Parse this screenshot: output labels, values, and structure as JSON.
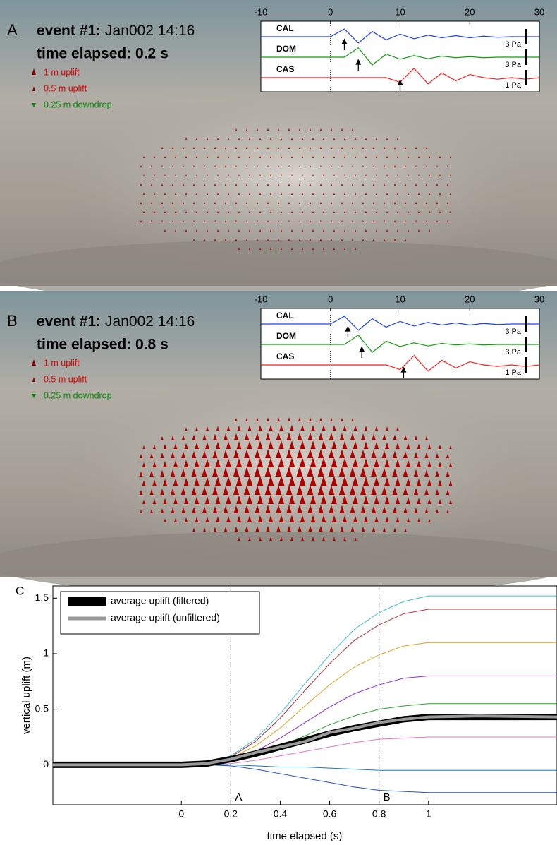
{
  "panels": [
    {
      "label": "A",
      "heading": "event #1:",
      "event": "Jan002 14:16",
      "elapsed": "time elapsed: 0.2 s",
      "legend": [
        "1 m uplift",
        "0.5 m uplift",
        "0.25 m downdrop"
      ]
    },
    {
      "label": "B",
      "heading": "event #1:",
      "event": "Jan002 14:16",
      "elapsed": "time elapsed: 0.8 s",
      "legend": [
        "1 m uplift",
        "0.5 m uplift",
        "0.25 m downdrop"
      ]
    }
  ],
  "chart_data": [
    {
      "type": "waveform",
      "xlim": [
        -10,
        30
      ],
      "xticks": [
        -10,
        0,
        10,
        20,
        30
      ],
      "x": [
        -10,
        -8,
        -6,
        -4,
        -2,
        0,
        2,
        4,
        6,
        8,
        10,
        12,
        14,
        16,
        18,
        20,
        22,
        24,
        26,
        28,
        30
      ],
      "series": [
        {
          "name": "CAL",
          "color": "#1f3fff",
          "scale": {
            "value": 3,
            "label": "3 Pa"
          },
          "arrival": 2,
          "values": [
            0,
            0,
            0,
            0,
            0,
            0,
            1.5,
            -1.2,
            1,
            -0.6,
            0.5,
            -0.4,
            0.3,
            -0.2,
            0.2,
            -0.2,
            0.1,
            -0.1,
            0,
            0,
            0
          ]
        },
        {
          "name": "DOM",
          "color": "#129c12",
          "scale": {
            "value": 3,
            "label": "3 Pa"
          },
          "arrival": 4,
          "values": [
            0,
            0,
            0,
            0,
            0,
            0,
            0,
            1.8,
            -1.5,
            0.6,
            -0.4,
            0.3,
            -0.3,
            0.2,
            -0.1,
            0.1,
            -0.1,
            0,
            0,
            0,
            0
          ]
        },
        {
          "name": "CAS",
          "color": "#ff1a1a",
          "scale": {
            "value": 1,
            "label": "1 Pa"
          },
          "arrival": 10,
          "values": [
            0,
            0,
            0,
            0,
            0,
            0,
            0,
            0,
            0,
            0,
            -0.3,
            0.6,
            -0.4,
            0.3,
            -0.2,
            0.2,
            0,
            -0.1,
            0,
            -0.1,
            0
          ]
        }
      ]
    },
    {
      "type": "waveform",
      "xlim": [
        -10,
        30
      ],
      "xticks": [
        -10,
        0,
        10,
        20,
        30
      ],
      "x": [
        -10,
        -8,
        -6,
        -4,
        -2,
        0,
        2,
        4,
        6,
        8,
        10,
        12,
        14,
        16,
        18,
        20,
        22,
        24,
        26,
        28,
        30
      ],
      "series": [
        {
          "name": "CAL",
          "color": "#1f3fff",
          "scale": {
            "value": 3,
            "label": "3 Pa"
          },
          "arrival": 2.5,
          "values": [
            0,
            0,
            0,
            0,
            0,
            0,
            1.5,
            -1.2,
            1,
            -0.6,
            0.5,
            -0.4,
            0.3,
            -0.2,
            0.2,
            -0.2,
            0.1,
            -0.1,
            0,
            0,
            0
          ]
        },
        {
          "name": "DOM",
          "color": "#129c12",
          "scale": {
            "value": 3,
            "label": "3 Pa"
          },
          "arrival": 4.5,
          "values": [
            0,
            0,
            0,
            0,
            0,
            0,
            0,
            1.8,
            -1.5,
            0.6,
            -0.4,
            0.3,
            -0.3,
            0.2,
            -0.1,
            0.1,
            -0.1,
            0,
            0,
            0,
            0
          ]
        },
        {
          "name": "CAS",
          "color": "#ff1a1a",
          "scale": {
            "value": 1,
            "label": "1 Pa"
          },
          "arrival": 10.5,
          "values": [
            0,
            0,
            0,
            0,
            0,
            0,
            0,
            0,
            0,
            0,
            -0.3,
            0.6,
            -0.4,
            0.3,
            -0.2,
            0.2,
            0,
            -0.1,
            0,
            -0.1,
            0
          ]
        }
      ]
    },
    {
      "type": "line",
      "panel_label": "C",
      "xlabel": "time elapsed (s)",
      "ylabel": "vertical uplift (m)",
      "xlim": [
        -0.52,
        1.52
      ],
      "ylim": [
        -0.36,
        1.61
      ],
      "xticks": [
        0,
        0.2,
        0.4,
        0.6,
        0.8,
        1
      ],
      "yticks": [
        0,
        0.5,
        1,
        1.5
      ],
      "markers": [
        {
          "value": 0.2,
          "label": "A"
        },
        {
          "value": 0.8,
          "label": "B"
        }
      ],
      "x": [
        -0.52,
        0,
        0.1,
        0.2,
        0.3,
        0.4,
        0.5,
        0.6,
        0.7,
        0.8,
        0.9,
        1.0,
        1.2,
        1.52
      ],
      "series": [
        {
          "color": "#3fb8d8",
          "values": [
            0,
            0,
            0.02,
            0.08,
            0.23,
            0.46,
            0.73,
            0.99,
            1.22,
            1.37,
            1.47,
            1.52,
            1.52,
            1.52
          ]
        },
        {
          "color": "#b03030",
          "values": [
            0,
            0,
            0.01,
            0.07,
            0.21,
            0.42,
            0.67,
            0.91,
            1.12,
            1.26,
            1.36,
            1.4,
            1.4,
            1.4
          ]
        },
        {
          "color": "#e0a020",
          "values": [
            0,
            0,
            0.01,
            0.06,
            0.17,
            0.33,
            0.53,
            0.72,
            0.88,
            0.99,
            1.07,
            1.1,
            1.1,
            1.1
          ]
        },
        {
          "color": "#8a2be2",
          "values": [
            0,
            0,
            0.01,
            0.04,
            0.12,
            0.24,
            0.38,
            0.52,
            0.64,
            0.72,
            0.78,
            0.8,
            0.8,
            0.8
          ]
        },
        {
          "color": "#2ca02c",
          "values": [
            0,
            0,
            0.01,
            0.03,
            0.08,
            0.17,
            0.26,
            0.36,
            0.44,
            0.5,
            0.53,
            0.55,
            0.55,
            0.55
          ]
        },
        {
          "color": "#e377c2",
          "values": [
            0,
            0,
            0,
            0.01,
            0.04,
            0.08,
            0.12,
            0.16,
            0.2,
            0.23,
            0.24,
            0.25,
            0.25,
            0.25
          ]
        },
        {
          "color": "#1f77b4",
          "values": [
            0,
            0,
            0,
            0,
            -0.01,
            -0.02,
            -0.02,
            -0.03,
            -0.04,
            -0.05,
            -0.05,
            -0.05,
            -0.05,
            -0.05
          ]
        },
        {
          "color": "#2050c0",
          "values": [
            0,
            0,
            0,
            -0.01,
            -0.04,
            -0.08,
            -0.12,
            -0.16,
            -0.2,
            -0.23,
            -0.24,
            -0.25,
            -0.25,
            -0.25
          ]
        },
        {
          "name": "average uplift (filtered)",
          "color": "#000000",
          "width": 9,
          "values": [
            0,
            0,
            0.01,
            0.05,
            0.1,
            0.16,
            0.22,
            0.28,
            0.33,
            0.37,
            0.41,
            0.43,
            0.43,
            0.43
          ]
        },
        {
          "name": "average uplift (unfiltered)",
          "color": "#999999",
          "width": 4,
          "values": [
            0,
            0,
            0.01,
            0.05,
            0.11,
            0.16,
            0.21,
            0.29,
            0.33,
            0.38,
            0.41,
            0.43,
            0.44,
            0.43
          ]
        }
      ]
    }
  ]
}
